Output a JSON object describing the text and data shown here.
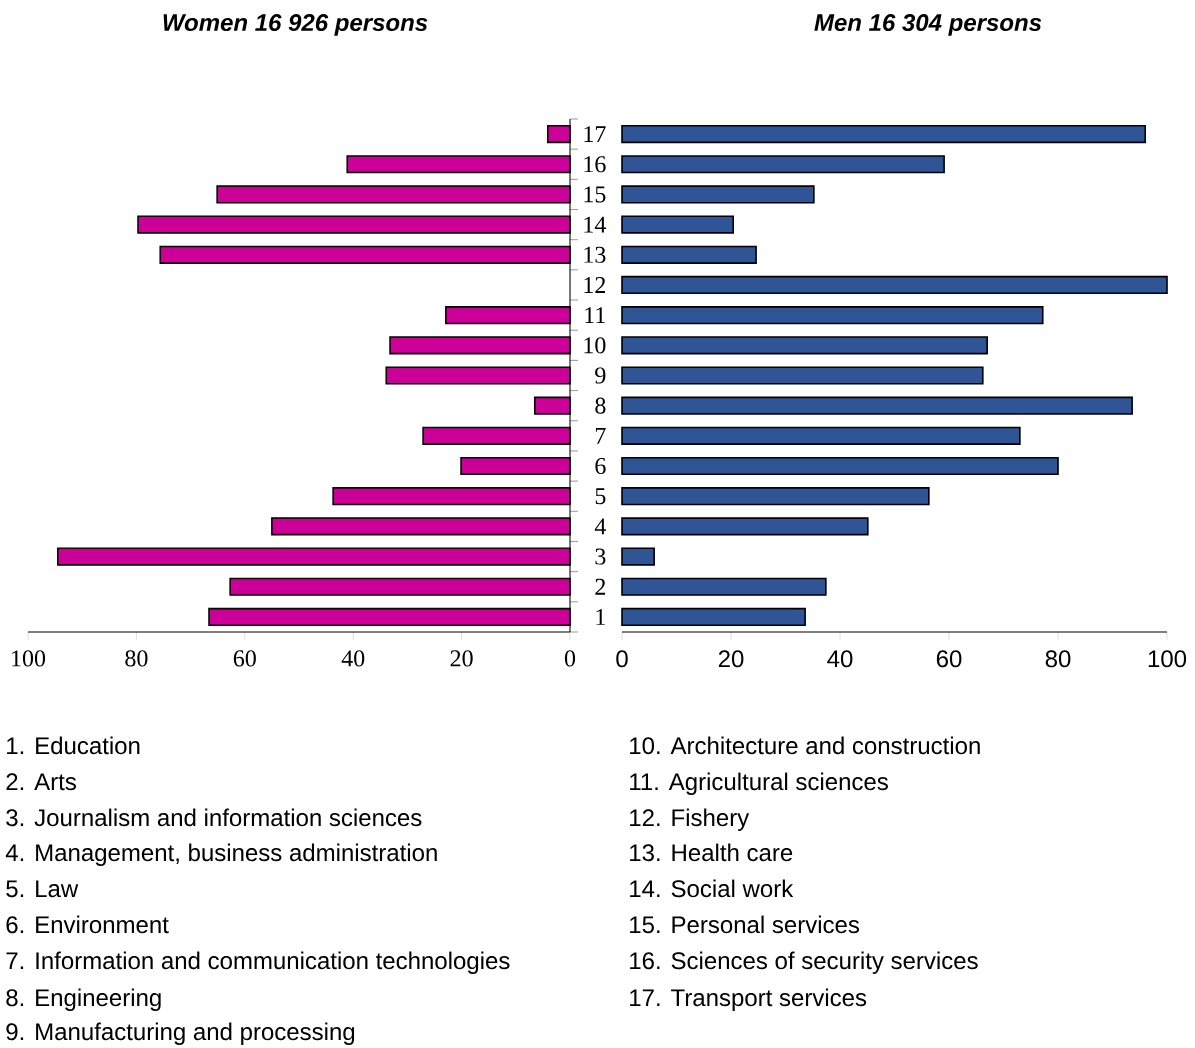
{
  "chart_data": [
    {
      "type": "bar",
      "orientation": "horizontal",
      "title": "Women 16 926 persons",
      "categories": [
        "17",
        "16",
        "15",
        "14",
        "13",
        "12",
        "11",
        "10",
        "9",
        "8",
        "7",
        "6",
        "5",
        "4",
        "3",
        "2",
        "1"
      ],
      "values": [
        4.1,
        41.1,
        65.1,
        79.7,
        75.6,
        null,
        22.9,
        33.2,
        33.9,
        6.5,
        27.1,
        20.1,
        43.7,
        55.0,
        94.5,
        62.7,
        66.6
      ],
      "color": "#cc0099",
      "xlim": [
        100,
        0
      ],
      "xticks": [
        100,
        80,
        60,
        40,
        20,
        0
      ],
      "tick_labels": "x",
      "annotations": [
        "1. Education",
        "2. Arts",
        "3. Journalism and information sciences",
        "4. Management, business administration",
        "5. Law",
        "6. Environment",
        "7. Information and communication technologies",
        "8. Engineering",
        "9. Manufacturing and processing"
      ]
    },
    {
      "type": "bar",
      "orientation": "horizontal",
      "title": "Men 16 304 persons",
      "categories": [
        "17",
        "16",
        "15",
        "14",
        "13",
        "12",
        "11",
        "10",
        "9",
        "8",
        "7",
        "6",
        "5",
        "4",
        "3",
        "2",
        "1"
      ],
      "values": [
        96.0,
        59.1,
        35.2,
        20.4,
        24.6,
        100,
        77.2,
        67.0,
        66.2,
        93.6,
        73.0,
        80.0,
        56.3,
        45.1,
        5.9,
        37.4,
        33.6
      ],
      "color": "#2f5597",
      "xlim": [
        0,
        100
      ],
      "xticks": [
        0,
        20,
        40,
        60,
        80,
        100
      ],
      "annotations": [
        "10. Architecture and construction",
        "11. Agricultural sciences",
        "12. Fishery",
        "13. Health care",
        "14. Social work",
        "15. Personal services",
        "16. Sciences of security services",
        "17. Transport services"
      ]
    }
  ]
}
